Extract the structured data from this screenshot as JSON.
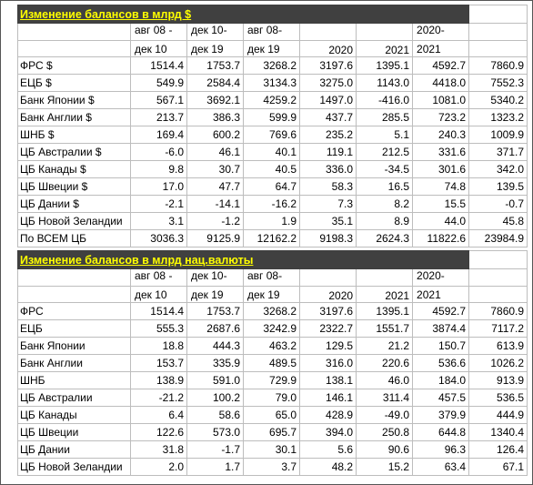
{
  "section1": {
    "title": "Изменение балансов в млрд $",
    "header_top": [
      "авг 08 -",
      "дек 10-",
      "авг 08-",
      "",
      "",
      "2020-",
      ""
    ],
    "header_bottom": [
      "дек 10",
      "дек 19",
      "дек 19",
      "2020",
      "2021",
      "2021",
      ""
    ],
    "rows": [
      {
        "name": "ФРС $",
        "values": [
          "1514.4",
          "1753.7",
          "3268.2",
          "3197.6",
          "1395.1",
          "4592.7",
          "7860.9"
        ]
      },
      {
        "name": "ЕЦБ $",
        "values": [
          "549.9",
          "2584.4",
          "3134.3",
          "3275.0",
          "1143.0",
          "4418.0",
          "7552.3"
        ]
      },
      {
        "name": "Банк Японии $",
        "values": [
          "567.1",
          "3692.1",
          "4259.2",
          "1497.0",
          "-416.0",
          "1081.0",
          "5340.2"
        ]
      },
      {
        "name": "Банк Англии $",
        "values": [
          "213.7",
          "386.3",
          "599.9",
          "437.7",
          "285.5",
          "723.2",
          "1323.2"
        ]
      },
      {
        "name": "ШНБ $",
        "values": [
          "169.4",
          "600.2",
          "769.6",
          "235.2",
          "5.1",
          "240.3",
          "1009.9"
        ]
      },
      {
        "name": "ЦБ Австралии $",
        "values": [
          "-6.0",
          "46.1",
          "40.1",
          "119.1",
          "212.5",
          "331.6",
          "371.7"
        ]
      },
      {
        "name": "ЦБ Канады $",
        "values": [
          "9.8",
          "30.7",
          "40.5",
          "336.0",
          "-34.5",
          "301.6",
          "342.0"
        ]
      },
      {
        "name": "ЦБ Швеции $",
        "values": [
          "17.0",
          "47.7",
          "64.7",
          "58.3",
          "16.5",
          "74.8",
          "139.5"
        ]
      },
      {
        "name": "ЦБ Дании $",
        "values": [
          "-2.1",
          "-14.1",
          "-16.2",
          "7.3",
          "8.2",
          "15.5",
          "-0.7"
        ]
      },
      {
        "name": "ЦБ Новой Зеландии",
        "values": [
          "3.1",
          "-1.2",
          "1.9",
          "35.1",
          "8.9",
          "44.0",
          "45.8"
        ]
      },
      {
        "name": "По ВСЕМ ЦБ",
        "values": [
          "3036.3",
          "9125.9",
          "12162.2",
          "9198.3",
          "2624.3",
          "11822.6",
          "23984.9"
        ]
      }
    ]
  },
  "section2": {
    "title": "Изменение балансов в млрд нац.валюты",
    "header_top": [
      "авг 08 -",
      "дек 10-",
      "авг 08-",
      "",
      "",
      "2020-",
      ""
    ],
    "header_bottom": [
      "дек 10",
      "дек 19",
      "дек 19",
      "2020",
      "2021",
      "2021",
      ""
    ],
    "rows": [
      {
        "name": "ФРС",
        "values": [
          "1514.4",
          "1753.7",
          "3268.2",
          "3197.6",
          "1395.1",
          "4592.7",
          "7860.9"
        ]
      },
      {
        "name": "ЕЦБ",
        "values": [
          "555.3",
          "2687.6",
          "3242.9",
          "2322.7",
          "1551.7",
          "3874.4",
          "7117.2"
        ]
      },
      {
        "name": "Банк Японии",
        "values": [
          "18.8",
          "444.3",
          "463.2",
          "129.5",
          "21.2",
          "150.7",
          "613.9"
        ]
      },
      {
        "name": "Банк Англии",
        "values": [
          "153.7",
          "335.9",
          "489.5",
          "316.0",
          "220.6",
          "536.6",
          "1026.2"
        ]
      },
      {
        "name": "ШНБ",
        "values": [
          "138.9",
          "591.0",
          "729.9",
          "138.1",
          "46.0",
          "184.0",
          "913.9"
        ]
      },
      {
        "name": "ЦБ Австралии",
        "values": [
          "-21.2",
          "100.2",
          "79.0",
          "146.1",
          "311.4",
          "457.5",
          "536.5"
        ]
      },
      {
        "name": "ЦБ Канады",
        "values": [
          "6.4",
          "58.6",
          "65.0",
          "428.9",
          "-49.0",
          "379.9",
          "444.9"
        ]
      },
      {
        "name": "ЦБ Швеции",
        "values": [
          "122.6",
          "573.0",
          "695.7",
          "394.0",
          "250.8",
          "644.8",
          "1340.4"
        ]
      },
      {
        "name": "ЦБ Дании",
        "values": [
          "31.8",
          "-1.7",
          "30.1",
          "5.6",
          "90.6",
          "96.3",
          "126.4"
        ]
      },
      {
        "name": "ЦБ Новой Зеландии",
        "values": [
          "2.0",
          "1.7",
          "3.7",
          "48.2",
          "15.2",
          "63.4",
          "67.1"
        ]
      }
    ]
  }
}
